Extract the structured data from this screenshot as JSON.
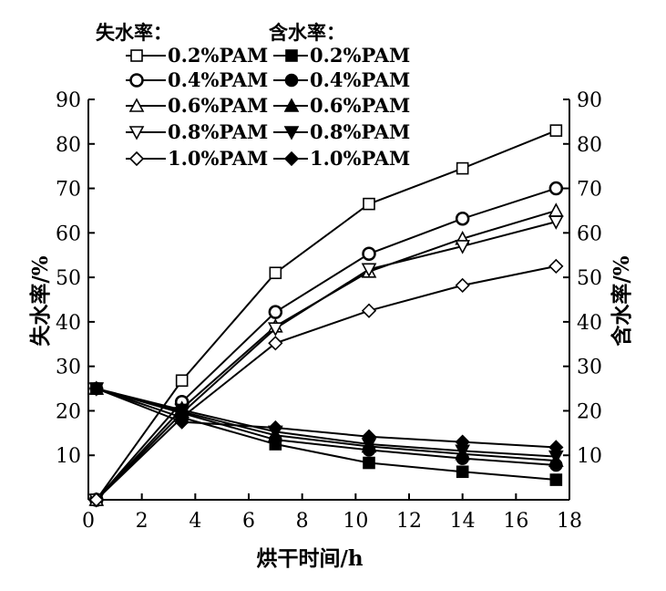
{
  "chart_data": {
    "type": "line",
    "xlabel": "烘干时间/h",
    "ylabel_left": "失水率/%",
    "ylabel_right": "含水率/%",
    "xlim": [
      0,
      18
    ],
    "ylim": [
      0,
      90
    ],
    "xticks": [
      "0",
      "2",
      "4",
      "6",
      "8",
      "10",
      "12",
      "14",
      "16",
      "18"
    ],
    "yticks_left": [
      "10",
      "20",
      "30",
      "40",
      "50",
      "60",
      "70",
      "80",
      "90"
    ],
    "yticks_right": [
      "10",
      "20",
      "30",
      "40",
      "50",
      "60",
      "70",
      "80",
      "90"
    ],
    "grid": false,
    "legend_placement": "top-left",
    "legend_header_loss": "失水率：",
    "legend_header_moisture": "含水率：",
    "x": [
      0.3,
      3.5,
      7,
      10.5,
      14,
      17.5
    ],
    "series": [
      {
        "name": "0.2%PAM",
        "group": "失水率",
        "marker": "square-open",
        "values": [
          0,
          26.8,
          51,
          66.5,
          74.5,
          83
        ]
      },
      {
        "name": "0.4%PAM",
        "group": "失水率",
        "marker": "circle-open",
        "values": [
          0,
          22,
          42.2,
          55.3,
          63.2,
          70
        ]
      },
      {
        "name": "0.6%PAM",
        "group": "失水率",
        "marker": "triangle-up-open",
        "values": [
          0,
          20.5,
          39,
          51.3,
          58.7,
          65
        ]
      },
      {
        "name": "0.8%PAM",
        "group": "失水率",
        "marker": "triangle-down-open",
        "values": [
          0,
          19.5,
          38.5,
          51.8,
          57,
          62.5
        ]
      },
      {
        "name": "1.0%PAM",
        "group": "失水率",
        "marker": "diamond-open",
        "values": [
          0,
          18.5,
          35.2,
          42.5,
          48.2,
          52.5
        ]
      },
      {
        "name": "0.2%PAM",
        "group": "含水率",
        "marker": "square-filled",
        "values": [
          25,
          18.5,
          12.5,
          8.3,
          6.3,
          4.5
        ]
      },
      {
        "name": "0.4%PAM",
        "group": "含水率",
        "marker": "circle-filled",
        "values": [
          25,
          19.5,
          13.5,
          11.2,
          9.3,
          7.8
        ]
      },
      {
        "name": "0.6%PAM",
        "group": "含水率",
        "marker": "triangle-up-filled",
        "values": [
          25,
          19.8,
          14.5,
          12,
          10.3,
          8.8
        ]
      },
      {
        "name": "0.8%PAM",
        "group": "含水率",
        "marker": "triangle-down-filled",
        "values": [
          25,
          20.2,
          15.3,
          12.5,
          11,
          9.7
        ]
      },
      {
        "name": "1.0%PAM",
        "group": "含水率",
        "marker": "diamond-filled",
        "values": [
          25,
          17.5,
          16.2,
          14.2,
          13,
          11.8
        ]
      }
    ]
  }
}
